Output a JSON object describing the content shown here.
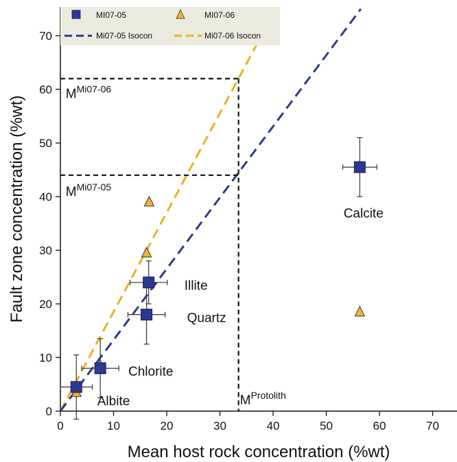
{
  "chart_data": {
    "type": "scatter",
    "xlabel": "Mean host rock concentration (%wt)",
    "ylabel": "Fault zone concentration (%wt)",
    "xlim": [
      0,
      75
    ],
    "ylim": [
      0,
      75
    ],
    "xticks": [
      0,
      10,
      20,
      30,
      40,
      50,
      60,
      70
    ],
    "yticks": [
      0,
      10,
      20,
      30,
      40,
      50,
      60,
      70
    ],
    "grid": false,
    "legend_position": "top-left",
    "colors": {
      "mi0705": "#2b3990",
      "mi0706": "#f2b632",
      "isocon0705": "#2b3990",
      "isocon0706": "#e8b418"
    },
    "series": [
      {
        "name": "MI07-05",
        "marker": "square",
        "points": [
          {
            "mineral": "Albite",
            "x": 3,
            "y": 4.5,
            "xerr": 3,
            "yerr": 6
          },
          {
            "mineral": "Chlorite",
            "x": 7.5,
            "y": 8,
            "xerr": 3.5,
            "yerr": 5.5
          },
          {
            "mineral": "Quartz",
            "x": 16.2,
            "y": 18,
            "xerr": 3.5,
            "yerr": 5.5
          },
          {
            "mineral": "Illite",
            "x": 16.6,
            "y": 24,
            "xerr": 3.5,
            "yerr": 4
          },
          {
            "mineral": "Calcite",
            "x": 56.3,
            "y": 45.5,
            "xerr": 3.2,
            "yerr": 5.5
          }
        ]
      },
      {
        "name": "MI07-06",
        "marker": "triangle",
        "points": [
          {
            "mineral": "Albite",
            "x": 3,
            "y": 3.5
          },
          {
            "mineral": "Chlorite",
            "x": 7.5,
            "y": 8.5
          },
          {
            "mineral": "Quartz",
            "x": 16.2,
            "y": 29.5
          },
          {
            "mineral": "Illite",
            "x": 16.7,
            "y": 39
          },
          {
            "mineral": "Calcite",
            "x": 56.3,
            "y": 18.5
          }
        ]
      },
      {
        "name": "Mi07-05 Isocon",
        "type": "line",
        "dash": true,
        "from": [
          0,
          0
        ],
        "to": [
          56.5,
          75
        ]
      },
      {
        "name": "Mi07-06 Isocon",
        "type": "line",
        "dash": true,
        "from": [
          0,
          0
        ],
        "to": [
          40.5,
          75
        ]
      }
    ],
    "reference_lines": {
      "protolith_x": 33.5,
      "m0705_y": 44,
      "m0706_y": 62
    },
    "labels": {
      "m0706_base": "M",
      "m0706_sup": "Mi07-06",
      "m0705_base": "M",
      "m0705_sup": "Mi07-05",
      "protolith_base": "M",
      "protolith_sup": "Protolith"
    },
    "mineral_labels": [
      {
        "text": "Calcite",
        "x": 57,
        "y": 37
      },
      {
        "text": "Illite",
        "x": 25.5,
        "y": 23.5
      },
      {
        "text": "Quartz",
        "x": 27.5,
        "y": 17.5
      },
      {
        "text": "Chlorite",
        "x": 17,
        "y": 7.5
      },
      {
        "text": "Albite",
        "x": 10,
        "y": 2
      }
    ],
    "legend": [
      {
        "label": "MI07-05",
        "marker": "square"
      },
      {
        "label": "MI07-06",
        "marker": "triangle"
      },
      {
        "label": "Mi07-05 Isocon",
        "marker": "dash-blue"
      },
      {
        "label": "Mi07-06 Isocon",
        "marker": "dash-yellow"
      }
    ]
  }
}
